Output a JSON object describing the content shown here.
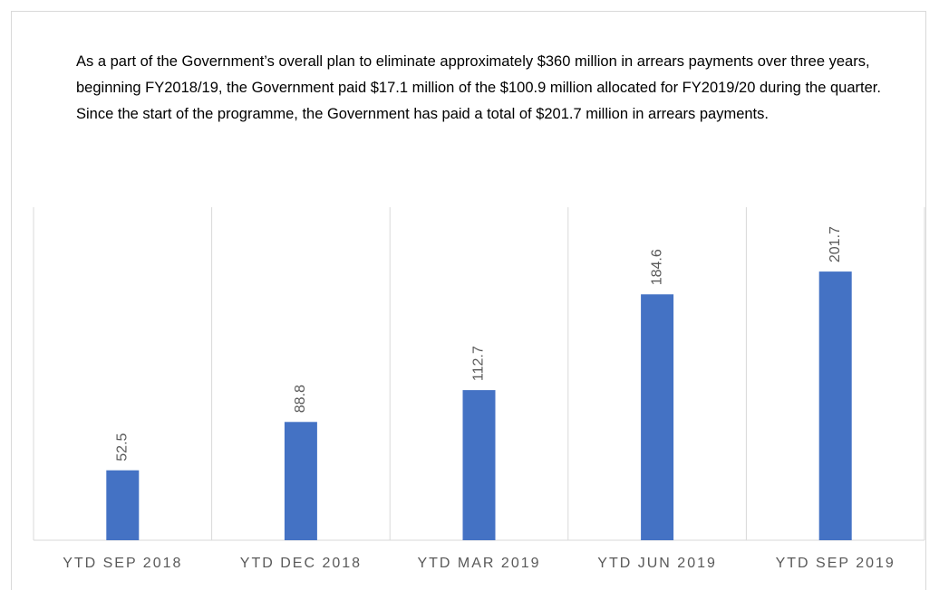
{
  "paragraph": "As a part of the Government’s overall plan to eliminate approximately $360 million in arrears payments over three years, beginning FY2018/19, the Government paid $17.1 million of the $100.9 million allocated for FY2019/20 during the quarter.  Since the start of the programme, the Government has paid a total of $201.7 million in arrears payments.",
  "chart_data": {
    "type": "bar",
    "categories": [
      "YTD SEP 2018",
      "YTD DEC 2018",
      "YTD MAR 2019",
      "YTD JUN 2019",
      "YTD SEP 2019"
    ],
    "values": [
      52.5,
      88.8,
      112.7,
      184.6,
      201.7
    ],
    "color": "#4472c4",
    "ylim": [
      0,
      250
    ]
  }
}
